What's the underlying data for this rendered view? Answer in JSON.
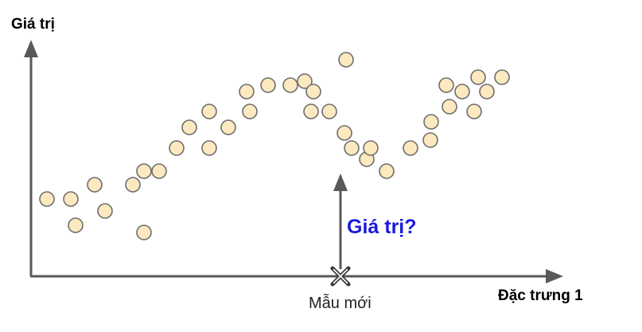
{
  "labels": {
    "y_axis": "Giá trị",
    "x_axis": "Đặc trưng 1",
    "query": "Giá trị?",
    "new_sample": "Mẫu mới"
  },
  "colors": {
    "axis": "#595959",
    "point_fill": "#fce9c0",
    "point_stroke": "#6e6e6e",
    "query": "#1a1adb",
    "marker": "#333333"
  },
  "chart_data": {
    "type": "scatter",
    "xlabel": "Đặc trưng 1",
    "ylabel": "Giá trị",
    "xlim": [
      0,
      650
    ],
    "ylim": [
      0,
      300
    ],
    "points": [
      {
        "x": 20,
        "y": 97
      },
      {
        "x": 50,
        "y": 97
      },
      {
        "x": 56,
        "y": 64
      },
      {
        "x": 80,
        "y": 115
      },
      {
        "x": 93,
        "y": 82
      },
      {
        "x": 128,
        "y": 115
      },
      {
        "x": 142,
        "y": 55
      },
      {
        "x": 142,
        "y": 132
      },
      {
        "x": 161,
        "y": 132
      },
      {
        "x": 183,
        "y": 161
      },
      {
        "x": 199,
        "y": 187
      },
      {
        "x": 224,
        "y": 161
      },
      {
        "x": 224,
        "y": 207
      },
      {
        "x": 248,
        "y": 187
      },
      {
        "x": 271,
        "y": 232
      },
      {
        "x": 275,
        "y": 207
      },
      {
        "x": 298,
        "y": 240
      },
      {
        "x": 326,
        "y": 240
      },
      {
        "x": 344,
        "y": 245
      },
      {
        "x": 352,
        "y": 207
      },
      {
        "x": 355,
        "y": 232
      },
      {
        "x": 375,
        "y": 207
      },
      {
        "x": 396,
        "y": 272
      },
      {
        "x": 394,
        "y": 180
      },
      {
        "x": 403,
        "y": 161
      },
      {
        "x": 422,
        "y": 147
      },
      {
        "x": 427,
        "y": 161
      },
      {
        "x": 447,
        "y": 132
      },
      {
        "x": 477,
        "y": 161
      },
      {
        "x": 502,
        "y": 171
      },
      {
        "x": 503,
        "y": 194
      },
      {
        "x": 522,
        "y": 240
      },
      {
        "x": 526,
        "y": 213
      },
      {
        "x": 542,
        "y": 232
      },
      {
        "x": 557,
        "y": 207
      },
      {
        "x": 562,
        "y": 250
      },
      {
        "x": 573,
        "y": 232
      },
      {
        "x": 592,
        "y": 250
      }
    ],
    "query_x": 389
  }
}
